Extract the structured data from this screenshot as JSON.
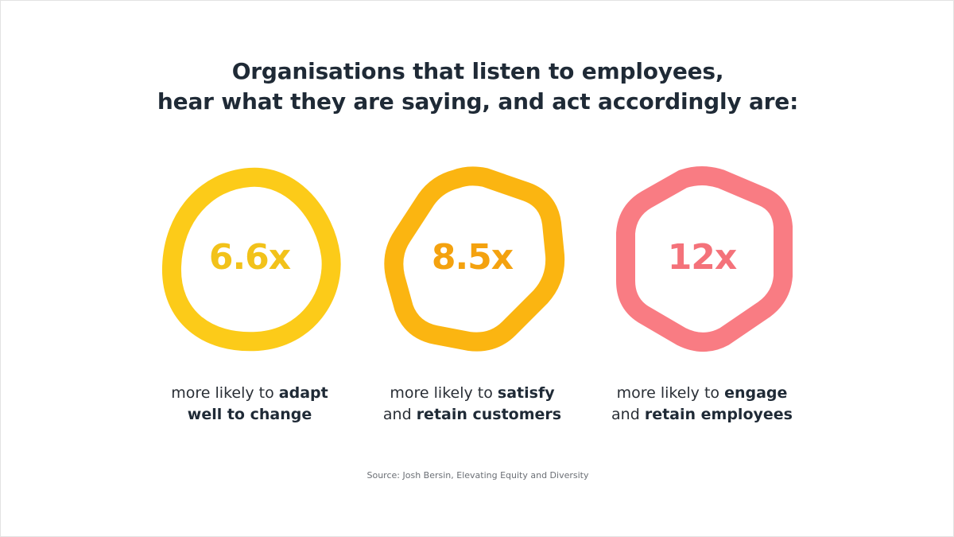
{
  "headline": {
    "line1": "Organisations that listen to employees,",
    "line2": "hear what they are saying, and act accordingly are:"
  },
  "stats": [
    {
      "value": "6.6x",
      "shape": "blob-icon",
      "color": "#FCCB19",
      "value_color": "#F2C21A",
      "caption_line1_pre": "more likely to ",
      "caption_line1_bold": "adapt",
      "caption_line2_pre": "",
      "caption_line2_bold": "well to change"
    },
    {
      "value": "8.5x",
      "shape": "rounded-heptagon-icon",
      "color": "#FBB511",
      "value_color": "#F4A20F",
      "caption_line1_pre": "more likely to ",
      "caption_line1_bold": "satisfy",
      "caption_line2_pre": "and ",
      "caption_line2_bold": "retain customers"
    },
    {
      "value": "12x",
      "shape": "rounded-hexagon-icon",
      "color": "#F97C83",
      "value_color": "#F4727A",
      "caption_line1_pre": "more likely to ",
      "caption_line1_bold": "engage",
      "caption_line2_pre": "and ",
      "caption_line2_bold": "retain employees"
    }
  ],
  "source": "Source: Josh Bersin, Elevating Equity and Diversity"
}
